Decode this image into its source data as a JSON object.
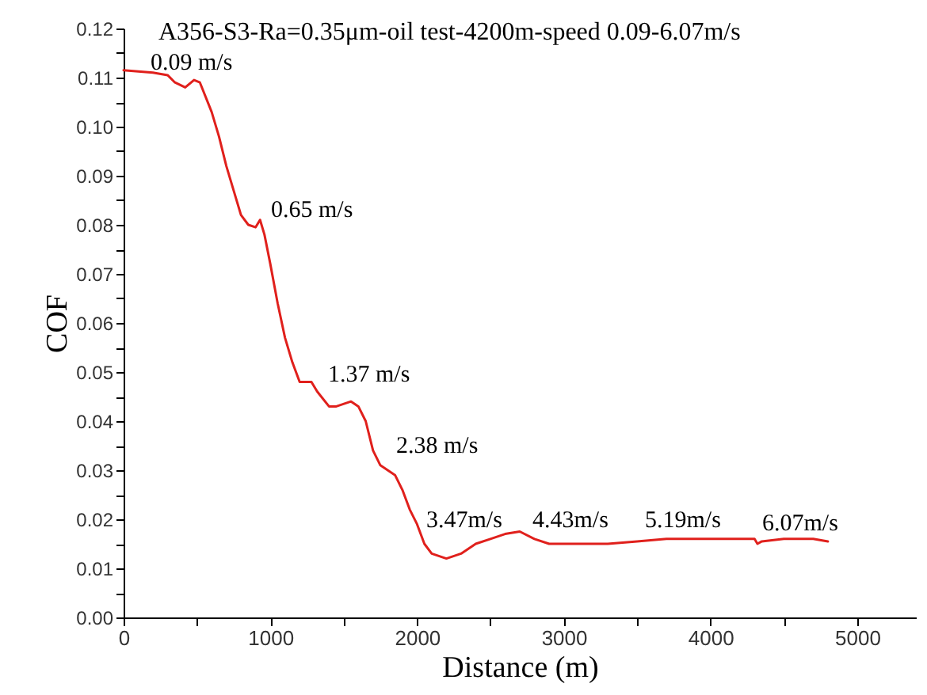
{
  "chart_data": {
    "type": "line",
    "title": "A356-S3-Ra=0.35μm-oil test-4200m-speed 0.09-6.07m/s",
    "xlabel": "Distance (m)",
    "ylabel": "COF",
    "x": [
      0,
      200,
      300,
      350,
      420,
      480,
      520,
      600,
      650,
      700,
      750,
      800,
      850,
      900,
      930,
      960,
      1000,
      1050,
      1100,
      1150,
      1200,
      1280,
      1320,
      1400,
      1450,
      1550,
      1600,
      1650,
      1700,
      1750,
      1800,
      1850,
      1900,
      1950,
      2000,
      2050,
      2100,
      2200,
      2300,
      2400,
      2500,
      2600,
      2700,
      2800,
      2900,
      3000,
      3300,
      3500,
      3700,
      4000,
      4300,
      4320,
      4350,
      4500,
      4700,
      4800
    ],
    "series": [
      {
        "color": "#e0201c",
        "values": [
          0.1115,
          0.111,
          0.1105,
          0.109,
          0.108,
          0.1095,
          0.109,
          0.103,
          0.098,
          0.092,
          0.087,
          0.082,
          0.08,
          0.0795,
          0.081,
          0.078,
          0.072,
          0.064,
          0.057,
          0.052,
          0.048,
          0.048,
          0.046,
          0.043,
          0.043,
          0.044,
          0.043,
          0.04,
          0.034,
          0.031,
          0.03,
          0.029,
          0.026,
          0.022,
          0.019,
          0.015,
          0.013,
          0.012,
          0.013,
          0.015,
          0.016,
          0.017,
          0.0175,
          0.016,
          0.015,
          0.015,
          0.015,
          0.0155,
          0.016,
          0.016,
          0.016,
          0.015,
          0.0155,
          0.016,
          0.016,
          0.0155
        ]
      }
    ],
    "annotations": [
      "0.09 m/s",
      "0.65 m/s",
      "1.37 m/s",
      "2.38 m/s",
      "3.47m/s",
      "4.43m/s",
      "5.19m/s",
      "6.07m/s"
    ],
    "xlim": [
      0,
      5400
    ],
    "xticks": [
      0,
      {
        "value": 500,
        "label": null
      },
      1000,
      {
        "value": 1500,
        "label": null
      },
      2000,
      {
        "value": 2500,
        "label": null
      },
      3000,
      {
        "value": 3500,
        "label": null
      },
      4000,
      {
        "value": 4500,
        "label": null
      },
      5000
    ],
    "ylim": [
      0,
      0.12
    ],
    "yticks": [
      {
        "value": 0,
        "label": "0.00"
      },
      {
        "value": 0.005,
        "label": null
      },
      {
        "value": 0.01,
        "label": "0.01"
      },
      {
        "value": 0.015,
        "label": null
      },
      {
        "value": 0.02,
        "label": "0.02"
      },
      {
        "value": 0.025,
        "label": null
      },
      {
        "value": 0.03,
        "label": "0.03"
      },
      {
        "value": 0.035,
        "label": null
      },
      {
        "value": 0.04,
        "label": "0.04"
      },
      {
        "value": 0.045,
        "label": null
      },
      {
        "value": 0.05,
        "label": "0.05"
      },
      {
        "value": 0.055,
        "label": null
      },
      {
        "value": 0.06,
        "label": "0.06"
      },
      {
        "value": 0.065,
        "label": null
      },
      {
        "value": 0.07,
        "label": "0.07"
      },
      {
        "value": 0.075,
        "label": null
      },
      {
        "value": 0.08,
        "label": "0.08"
      },
      {
        "value": 0.085,
        "label": null
      },
      {
        "value": 0.09,
        "label": "0.09"
      },
      {
        "value": 0.095,
        "label": null
      },
      {
        "value": 0.1,
        "label": "0.10"
      },
      {
        "value": 0.105,
        "label": null
      },
      {
        "value": 0.11,
        "label": "0.11"
      },
      {
        "value": 0.115,
        "label": null
      },
      {
        "value": 0.12,
        "label": "0.12"
      }
    ],
    "grid": false,
    "legend": false,
    "marker": "none",
    "line_style": "solid"
  }
}
